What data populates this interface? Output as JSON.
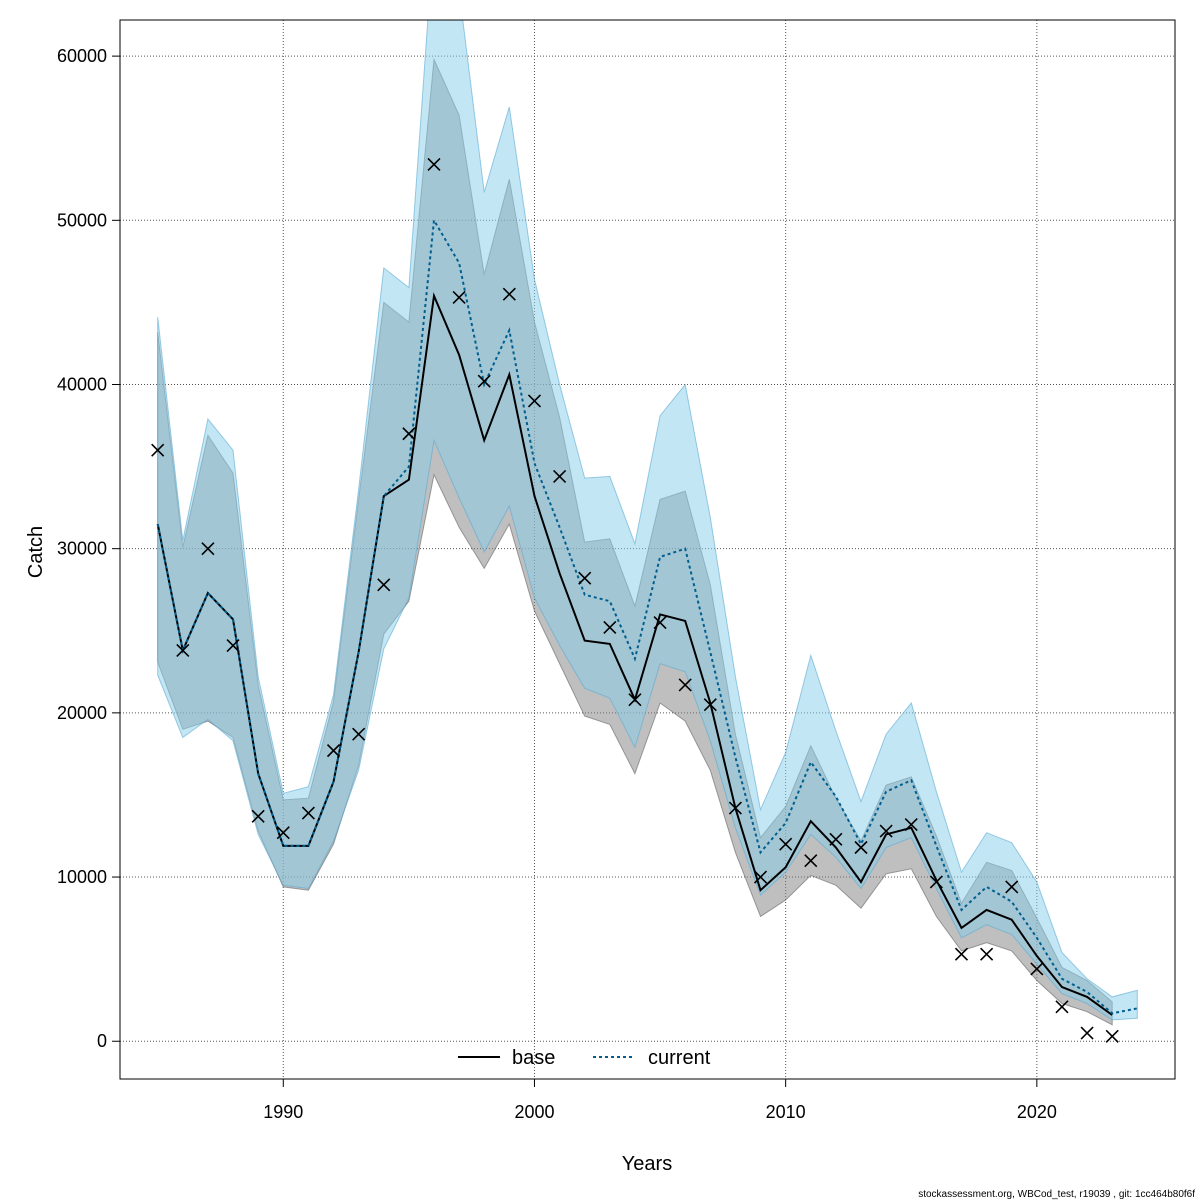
{
  "chart_data": {
    "type": "line",
    "xlabel": "Years",
    "ylabel": "Catch",
    "xlim": [
      1983.5,
      2025.5
    ],
    "ylim": [
      -2300,
      62200
    ],
    "xticks": [
      1990,
      2000,
      2010,
      2020
    ],
    "xtick_labels": [
      "1990",
      "2000",
      "2010",
      "2020"
    ],
    "yticks": [
      0,
      10000,
      20000,
      30000,
      40000,
      50000,
      60000
    ],
    "ytick_labels": [
      "0",
      "10000",
      "20000",
      "30000",
      "40000",
      "50000",
      "60000"
    ],
    "grid": true,
    "legend_position": "bottom-center",
    "series": [
      {
        "name": "base",
        "color": "#000000",
        "line_style": "solid",
        "band_color": "#808080",
        "x": [
          1985,
          1986,
          1987,
          1988,
          1989,
          1990,
          1991,
          1992,
          1993,
          1994,
          1995,
          1996,
          1997,
          1998,
          1999,
          2000,
          2001,
          2002,
          2003,
          2004,
          2005,
          2006,
          2007,
          2008,
          2009,
          2010,
          2011,
          2012,
          2013,
          2014,
          2015,
          2016,
          2017,
          2018,
          2019,
          2020,
          2021,
          2022,
          2023
        ],
        "y": [
          31500,
          23800,
          27300,
          25700,
          16300,
          11900,
          11900,
          15800,
          23700,
          33200,
          34200,
          45400,
          41800,
          36600,
          40600,
          33200,
          28500,
          24400,
          24200,
          20800,
          26000,
          25600,
          20600,
          14200,
          9200,
          10600,
          13400,
          11800,
          9700,
          12600,
          13000,
          9800,
          6900,
          8000,
          7400,
          5200,
          3300,
          2700,
          1600
        ],
        "lower": [
          23100,
          19000,
          19500,
          18500,
          12800,
          9400,
          9200,
          12000,
          16800,
          24800,
          26800,
          34500,
          31300,
          28800,
          31500,
          26200,
          23000,
          19800,
          19300,
          16300,
          20600,
          19500,
          16500,
          11500,
          7600,
          8600,
          10100,
          9500,
          8100,
          10200,
          10500,
          7600,
          5500,
          6000,
          5500,
          3700,
          2300,
          1800,
          1000
        ],
        "upper": [
          43200,
          30100,
          36900,
          34600,
          21700,
          14700,
          14800,
          20700,
          33000,
          45000,
          43800,
          59800,
          56400,
          46700,
          52500,
          43800,
          38000,
          30400,
          30600,
          26500,
          33000,
          33500,
          27800,
          18700,
          12400,
          14300,
          18000,
          14800,
          12200,
          15600,
          16100,
          12500,
          8400,
          10900,
          10400,
          7500,
          4500,
          3700,
          2400
        ]
      },
      {
        "name": "current",
        "color": "#005f8f",
        "line_style": "dotted",
        "band_color": "#87ceeb",
        "x": [
          1985,
          1986,
          1987,
          1988,
          1989,
          1990,
          1991,
          1992,
          1993,
          1994,
          1995,
          1996,
          1997,
          1998,
          1999,
          2000,
          2001,
          2002,
          2003,
          2004,
          2005,
          2006,
          2007,
          2008,
          2009,
          2010,
          2011,
          2012,
          2013,
          2014,
          2015,
          2016,
          2017,
          2018,
          2019,
          2020,
          2021,
          2022,
          2023,
          2024
        ],
        "y": [
          31500,
          23800,
          27300,
          25700,
          16300,
          11900,
          11900,
          15800,
          23700,
          33200,
          35000,
          50000,
          47400,
          40000,
          43300,
          35200,
          31300,
          27200,
          26800,
          23300,
          29500,
          30000,
          23700,
          17300,
          11500,
          13300,
          17000,
          14900,
          12000,
          15200,
          15900,
          11900,
          8000,
          9400,
          8500,
          6300,
          3800,
          3000,
          1700,
          2000
        ],
        "lower": [
          22300,
          18500,
          19600,
          18300,
          12600,
          9500,
          9300,
          12200,
          16500,
          23900,
          27000,
          36600,
          33100,
          29800,
          32600,
          27000,
          24100,
          21500,
          20900,
          17900,
          23000,
          22500,
          18300,
          13000,
          8900,
          10300,
          12600,
          11200,
          9300,
          11800,
          12400,
          9300,
          6300,
          7100,
          6500,
          4700,
          2900,
          2300,
          1300,
          1400
        ],
        "upper": [
          44100,
          30500,
          37900,
          36000,
          22200,
          15100,
          15500,
          21100,
          33600,
          47100,
          45900,
          67500,
          64000,
          51700,
          56900,
          46400,
          40000,
          34300,
          34400,
          30300,
          38100,
          40000,
          31900,
          22200,
          14100,
          17600,
          23500,
          18900,
          14600,
          18700,
          20600,
          15200,
          10300,
          12700,
          12100,
          9700,
          5400,
          3800,
          2700,
          3100
        ]
      }
    ],
    "observed": {
      "marker": "x",
      "x": [
        1985,
        1986,
        1987,
        1988,
        1989,
        1990,
        1991,
        1992,
        1993,
        1994,
        1995,
        1996,
        1997,
        1998,
        1999,
        2000,
        2001,
        2002,
        2003,
        2004,
        2005,
        2006,
        2007,
        2008,
        2009,
        2010,
        2011,
        2012,
        2013,
        2014,
        2015,
        2016,
        2017,
        2018,
        2019,
        2020,
        2021,
        2022,
        2023
      ],
      "y": [
        36000,
        23800,
        30000,
        24100,
        13700,
        12700,
        13900,
        17700,
        18700,
        27800,
        37000,
        53400,
        45300,
        40200,
        45500,
        39000,
        34400,
        28200,
        25200,
        20800,
        25500,
        21700,
        20500,
        14200,
        10000,
        12000,
        11000,
        12300,
        11800,
        12800,
        13200,
        9700,
        5300,
        5300,
        9400,
        4400,
        2100,
        500,
        300
      ]
    },
    "footer": "stockassessment.org, WBCod_test, r19039 , git: 1cc464b80f6f"
  }
}
